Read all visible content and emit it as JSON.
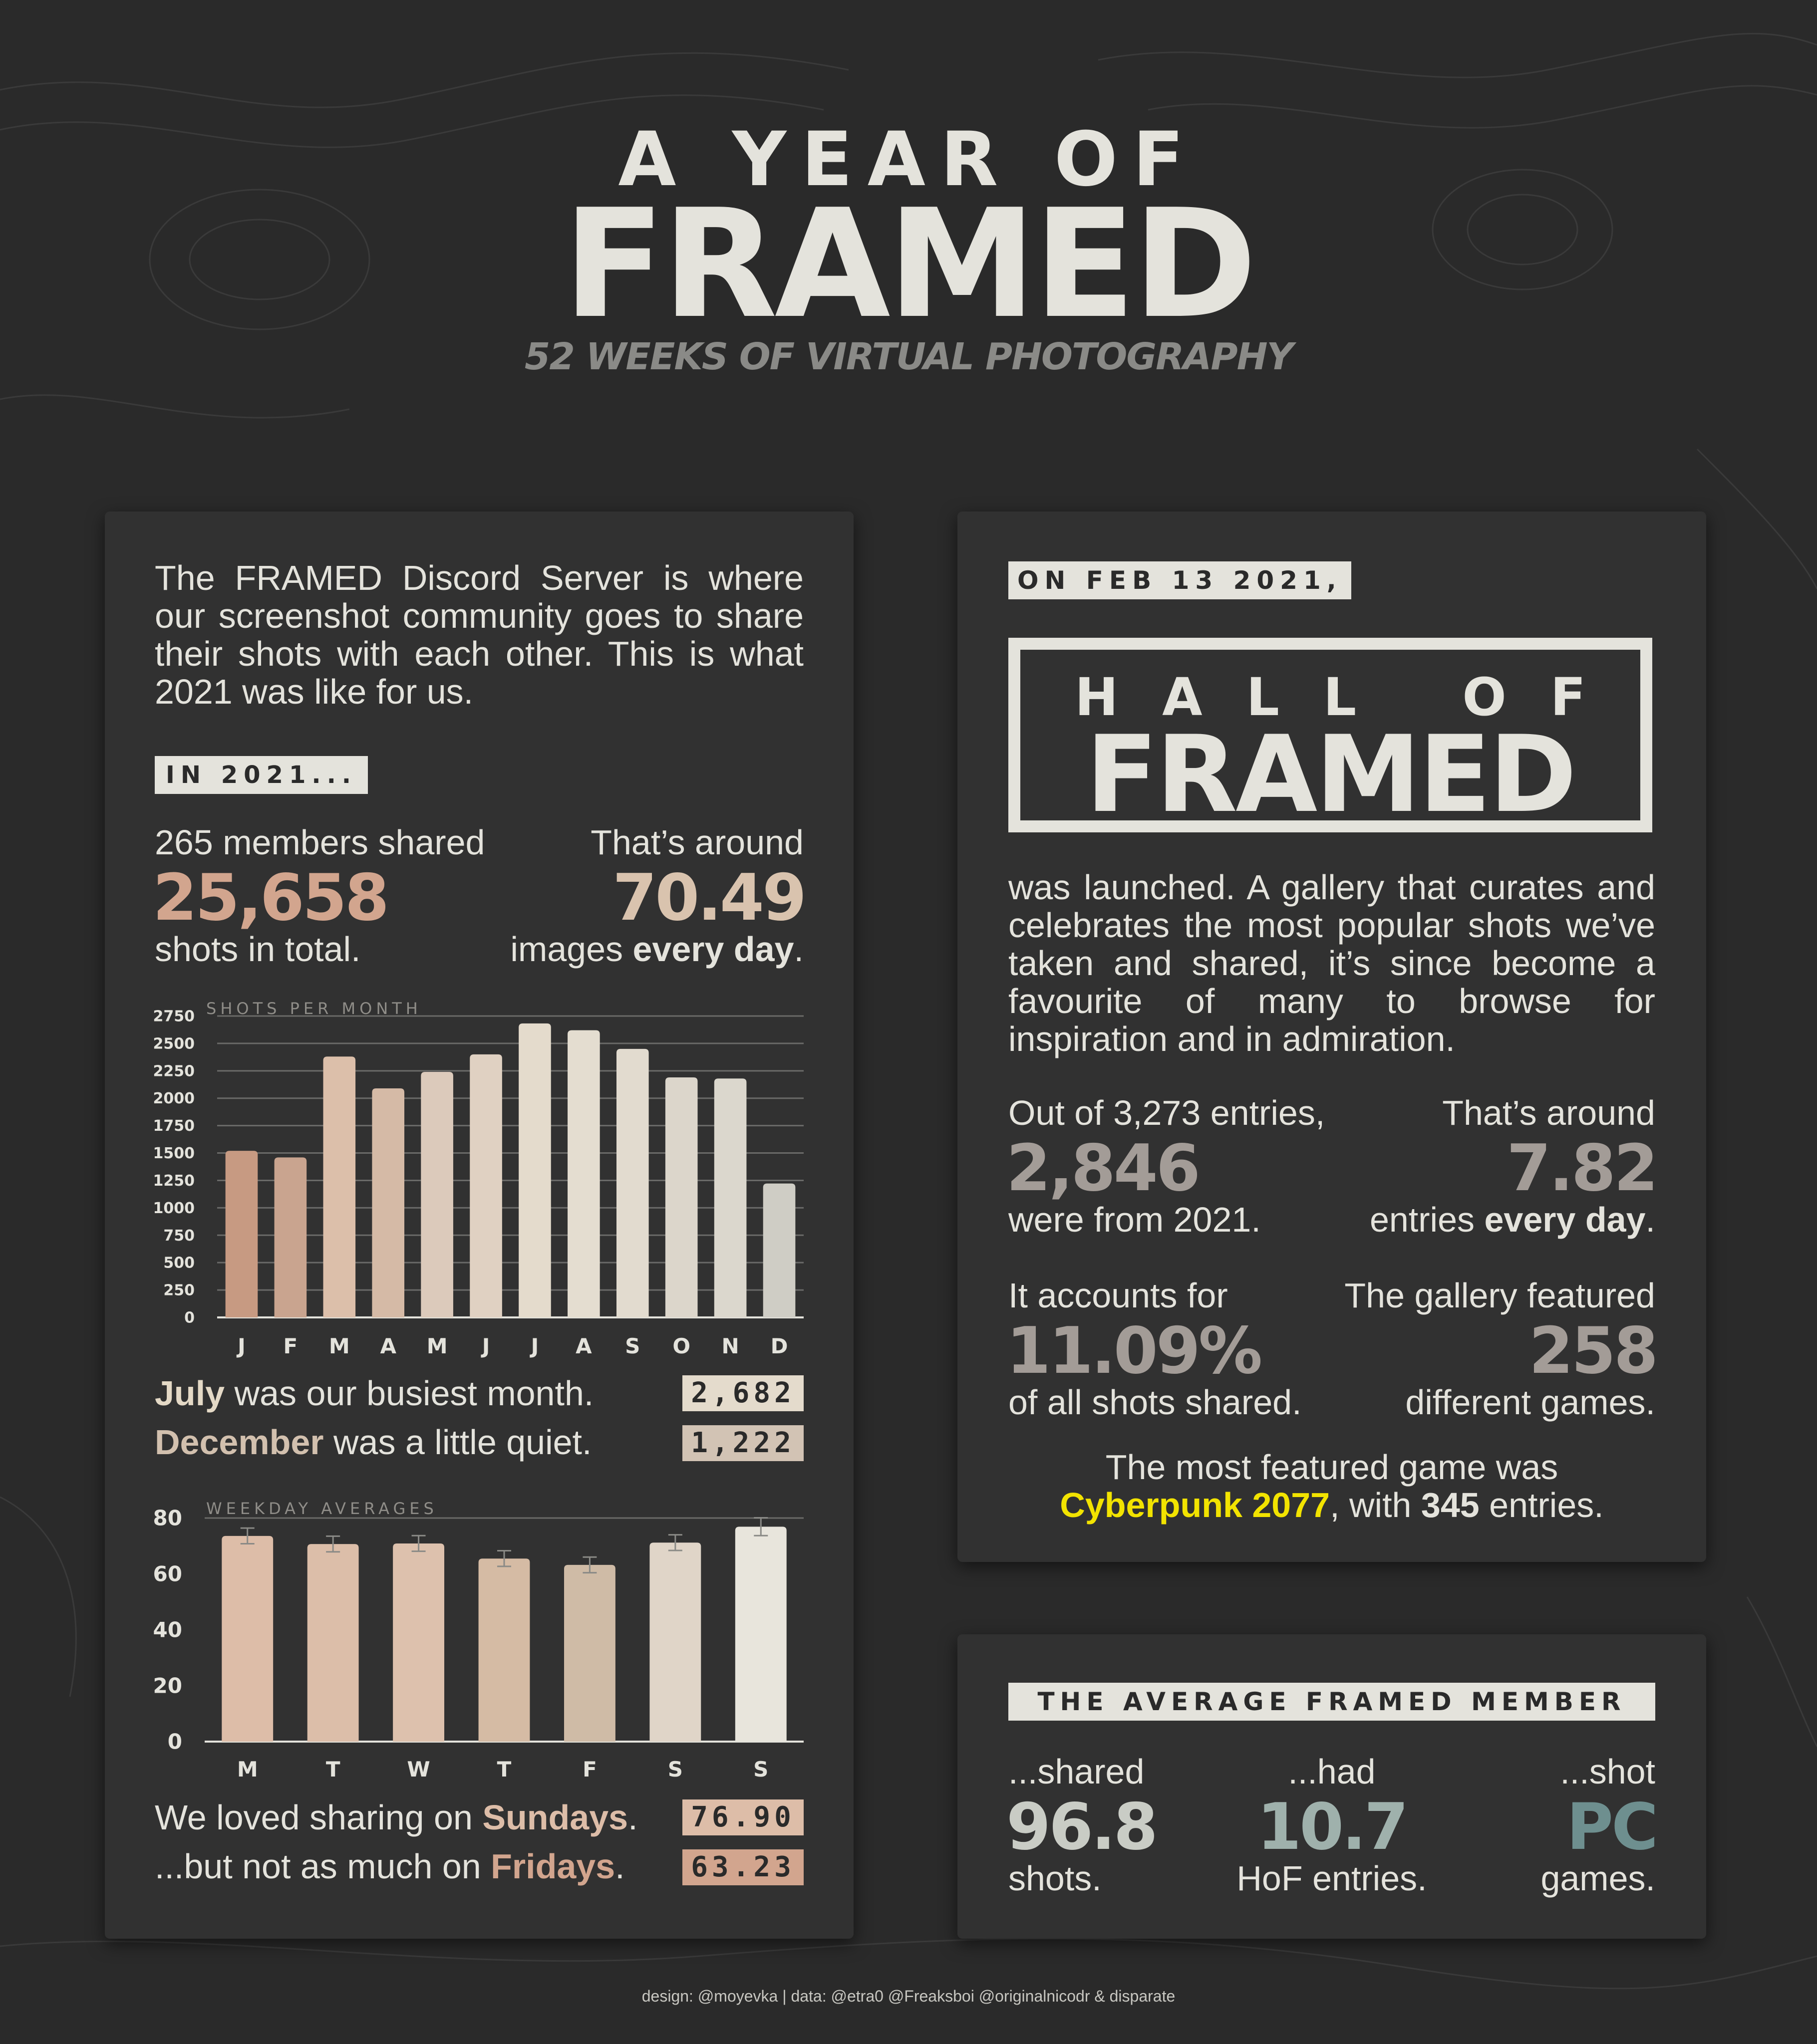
{
  "header": {
    "line1": "A YEAR OF",
    "line2": "FRAMED",
    "subtitle": "52 WEEKS OF VIRTUAL PHOTOGRAPHY"
  },
  "left_panel": {
    "intro": "The FRAMED Discord Server is where our screenshot community goes to share their shots with each other. This is what 2021 was like for us.",
    "tag": "IN 2021...",
    "stat_left": {
      "top": "265 members shared",
      "value": "25,658",
      "bottom": "shots in total."
    },
    "stat_right": {
      "top": "That’s around",
      "value": "70.49",
      "bottom_pre": "images ",
      "bottom_bold": "every day",
      "bottom_post": "."
    },
    "monthly_note_1": {
      "bold": "July",
      "rest": " was our busiest month.",
      "value": "2,682"
    },
    "monthly_note_2": {
      "bold": "December",
      "rest": " was a little quiet.",
      "value": "1,222"
    },
    "weekday_note_1": {
      "pre": "We loved sharing on ",
      "bold": "Sundays",
      "post": ".",
      "value": "76.90"
    },
    "weekday_note_2": {
      "pre": "...but not as much on ",
      "bold": "Fridays",
      "post": ".",
      "value": "63.23"
    }
  },
  "right_panel": {
    "tag": "ON FEB 13 2021,",
    "hof_line1": "HALL OF",
    "hof_line2": "FRAMED",
    "description": "was launched. A gallery that curates and celebrates the most popular shots we’ve taken and shared, it’s since become a favourite of many to browse for inspiration and in admiration.",
    "stat1": {
      "top": "Out of 3,273 entries,",
      "value": "2,846",
      "bottom": "were from 2021."
    },
    "stat2": {
      "top": "That’s around",
      "value": "7.82",
      "bottom_pre": "entries ",
      "bottom_bold": "every day",
      "bottom_post": "."
    },
    "stat3": {
      "top": "It accounts for",
      "value": "11.09%",
      "bottom": "of all shots shared."
    },
    "stat4": {
      "top": "The gallery featured",
      "value": "258",
      "bottom": "different games."
    },
    "most_featured_line1": "The most featured game was",
    "most_featured_game": "Cyberpunk 2077",
    "most_featured_mid": ", with ",
    "most_featured_count": "345",
    "most_featured_end": " entries."
  },
  "member_panel": {
    "tag": "THE AVERAGE FRAMED MEMBER",
    "col1": {
      "top": "...shared",
      "value": "96.8",
      "bottom": "shots."
    },
    "col2": {
      "top": "...had",
      "value": "10.7",
      "bottom": "HoF entries."
    },
    "col3": {
      "top": "...shot",
      "value": "PC",
      "bottom": "games."
    }
  },
  "footer": "design: @moyevka  |  data: @etra0 @Freaksboi @originalnicodr & disparate",
  "colors": {
    "background": "#2a2a2a",
    "panel": "#313131",
    "text_light": "#e4e3dc",
    "accent_salmon": "#d2a58e",
    "accent_tan": "#d9c3ae",
    "accent_yellow": "#f2e300",
    "accent_grey": "#a39c97",
    "accent_teal": "#6e8f8f"
  },
  "chart_data": [
    {
      "type": "bar",
      "title": "SHOTS PER MONTH",
      "categories": [
        "J",
        "F",
        "M",
        "A",
        "M",
        "J",
        "J",
        "A",
        "S",
        "O",
        "N",
        "D"
      ],
      "values": [
        1520,
        1460,
        2380,
        2090,
        2240,
        2400,
        2682,
        2620,
        2450,
        2190,
        2180,
        1222
      ],
      "ylim": [
        0,
        2750
      ],
      "yticks": [
        0,
        250,
        500,
        750,
        1000,
        1250,
        1500,
        1750,
        2000,
        2250,
        2500,
        2750
      ],
      "grid": true,
      "colors": [
        "#c79a82",
        "#c9a48f",
        "#dcbfaa",
        "#d5baa6",
        "#dccabb",
        "#e0d1c2",
        "#e4dbcc",
        "#e4ddd0",
        "#e2dbcf",
        "#dcd6cb",
        "#dbd7cd",
        "#cfcdc5"
      ]
    },
    {
      "type": "bar",
      "title": "WEEKDAY AVERAGES",
      "categories": [
        "M",
        "T",
        "W",
        "T",
        "F",
        "S",
        "S"
      ],
      "values": [
        73.6,
        70.7,
        70.9,
        65.5,
        63.23,
        71.2,
        76.9
      ],
      "errors": [
        2.8,
        2.8,
        2.8,
        2.8,
        2.8,
        2.8,
        3.2
      ],
      "ylim": [
        0,
        80
      ],
      "yticks": [
        0,
        20,
        40,
        60,
        80
      ],
      "grid": false,
      "colors": [
        "#ddbda8",
        "#dcbea9",
        "#ddc1ad",
        "#d5bba4",
        "#cfbba6",
        "#e0d5c8",
        "#e8e5dc"
      ]
    }
  ]
}
